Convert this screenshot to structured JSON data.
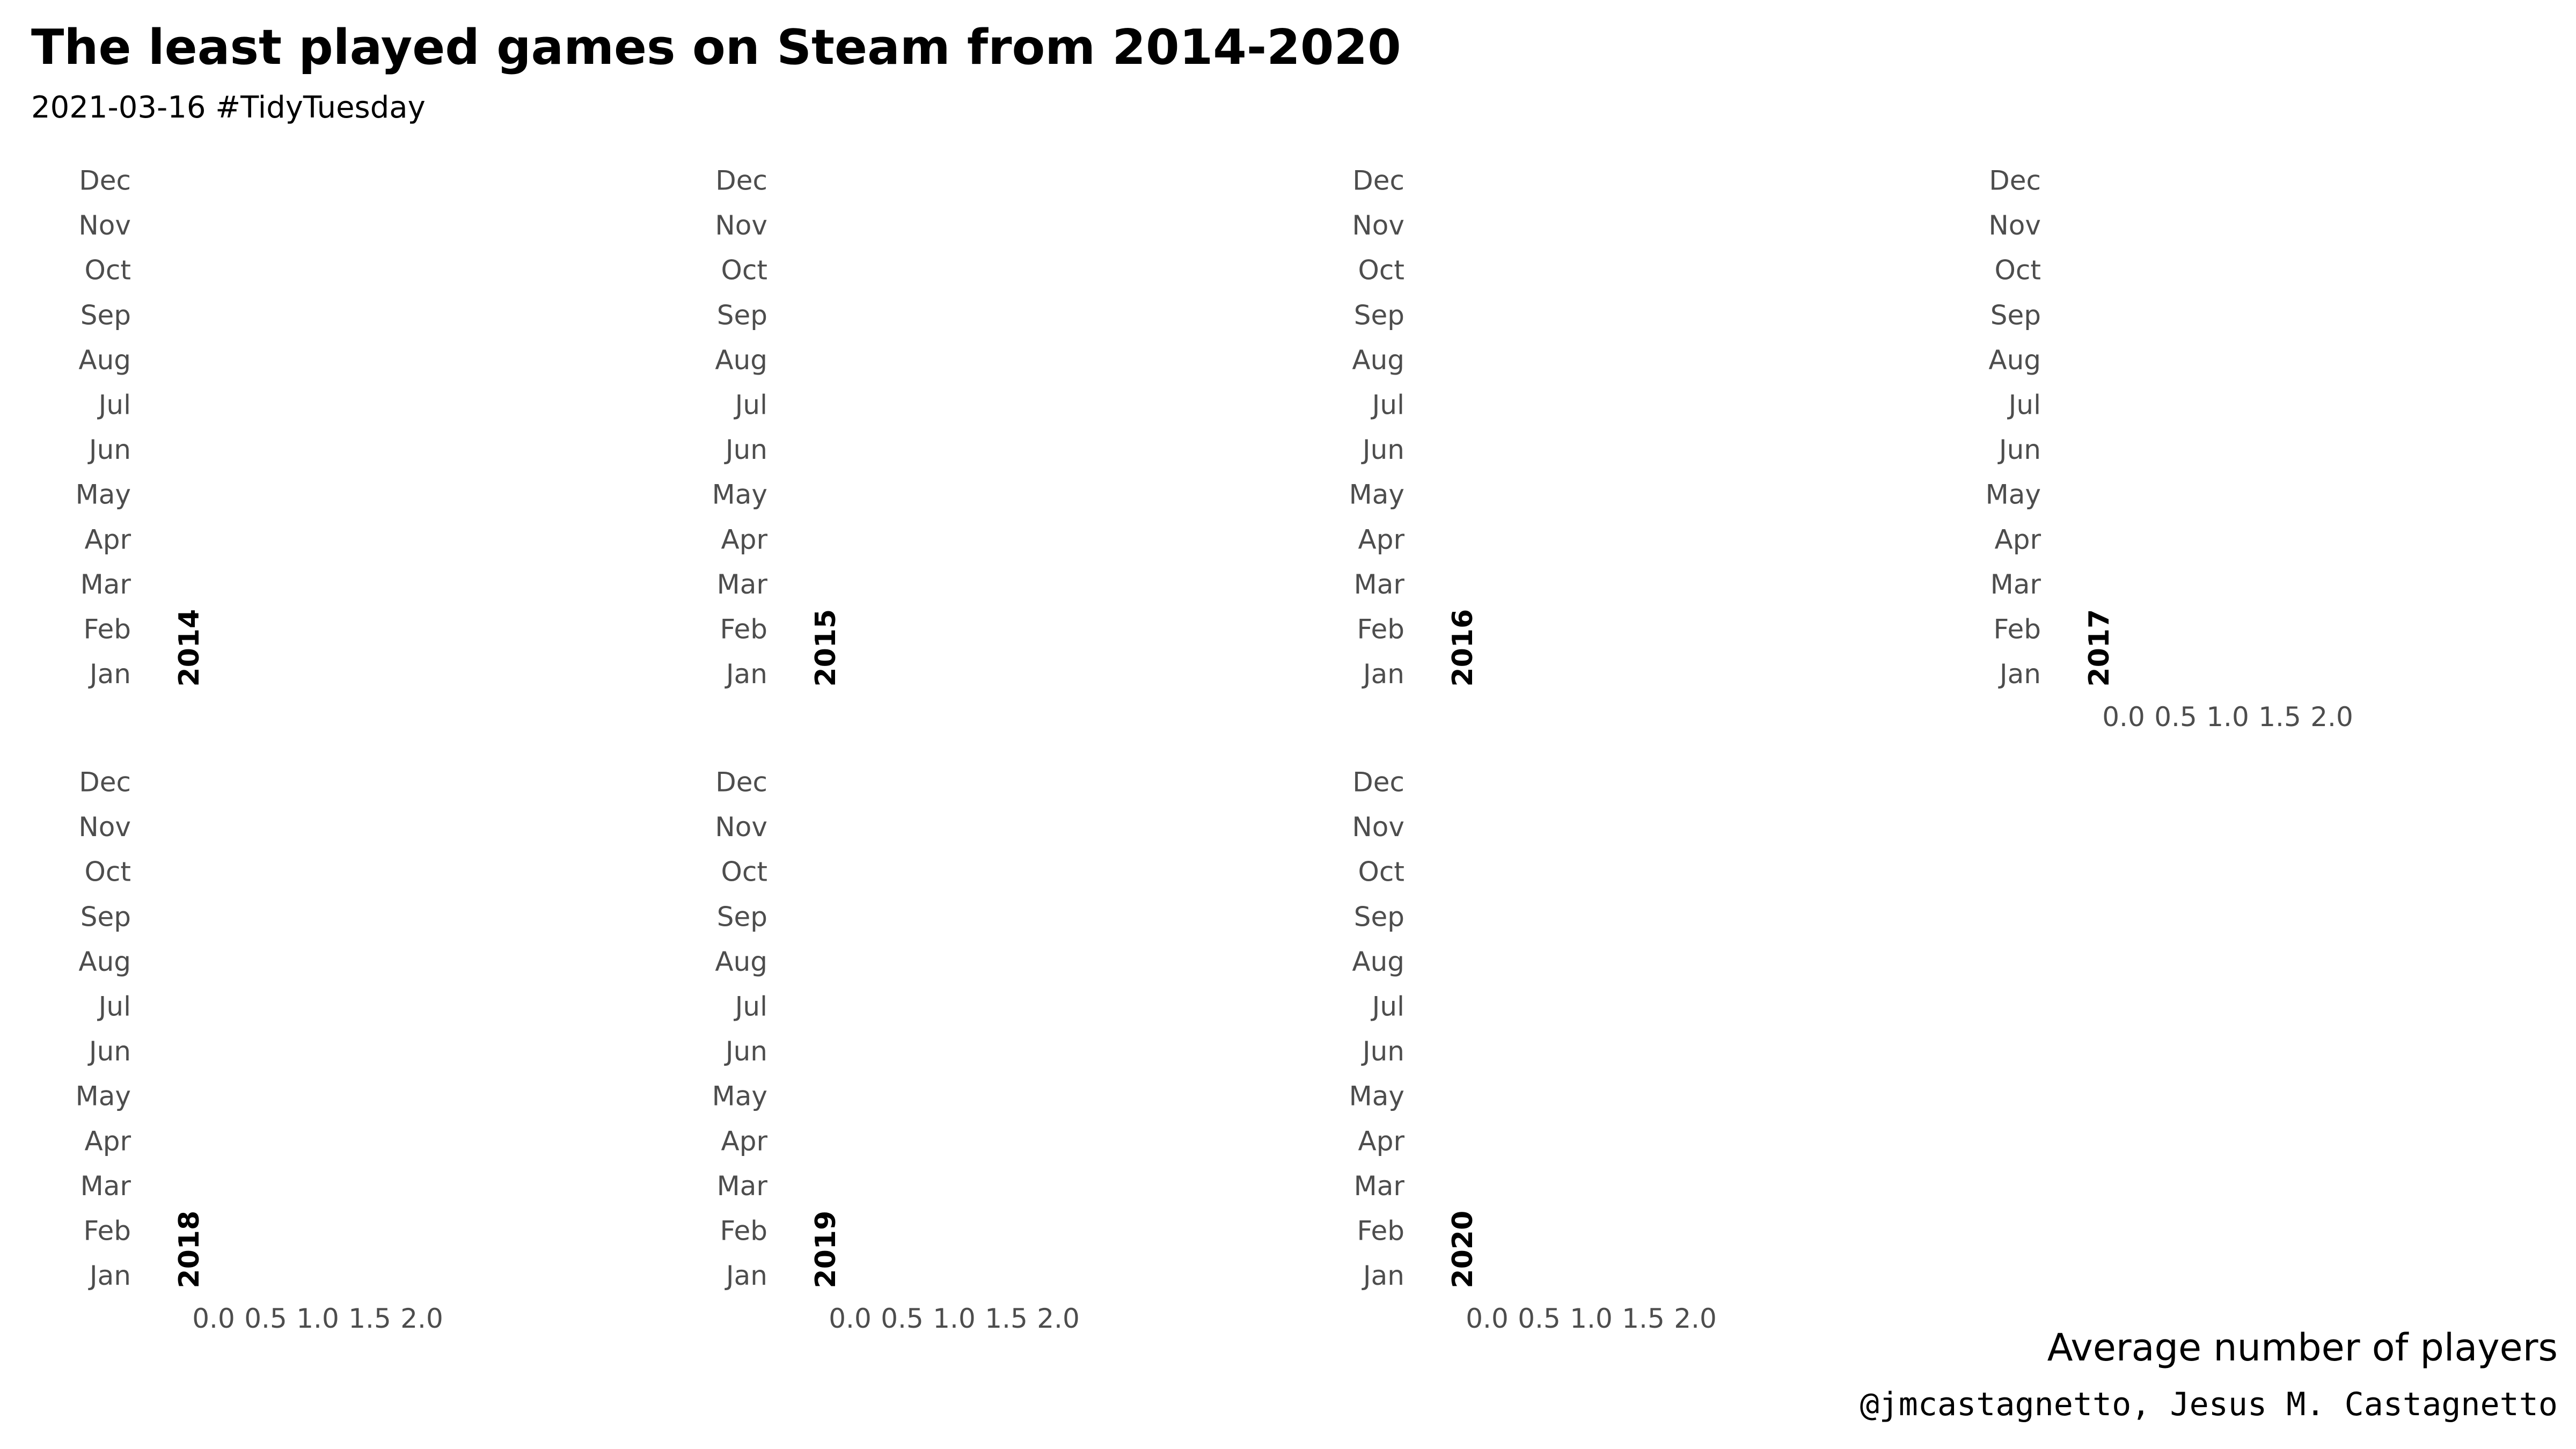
{
  "chart_data": {
    "type": "bar",
    "title": "The least played games on Steam from 2014-2020",
    "subtitle": "2021-03-16 #TidyTuesday",
    "xlabel": "Average number of players",
    "ylabel": "",
    "caption": "@jmcastagnetto, Jesus M. Castagnetto",
    "orientation": "horizontal",
    "facet_by": "year",
    "facets": [
      "2014",
      "2015",
      "2016",
      "2017",
      "2018",
      "2019",
      "2020"
    ],
    "categories": [
      "Jan",
      "Feb",
      "Mar",
      "Apr",
      "May",
      "Jun",
      "Jul",
      "Aug",
      "Sep",
      "Oct",
      "Nov",
      "Dec"
    ],
    "x_ticks": [
      "0.0",
      "0.5",
      "1.0",
      "1.5",
      "2.0"
    ],
    "xlim": [
      0,
      2
    ],
    "grid": false,
    "legend": "none",
    "series": []
  }
}
